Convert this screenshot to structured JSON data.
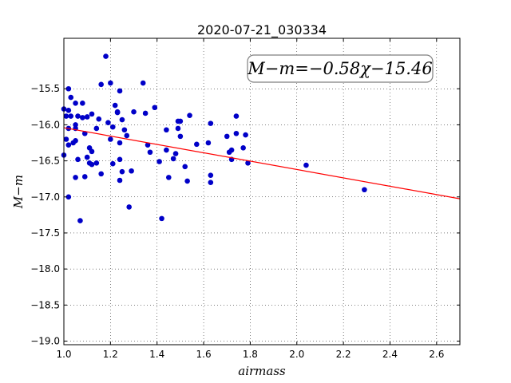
{
  "chart_data": {
    "type": "scatter",
    "title": "2020-07-21_030334",
    "xlabel": "airmass",
    "ylabel": "M−m",
    "xlim": [
      1.0,
      2.7
    ],
    "ylim": [
      -19.05,
      -14.8
    ],
    "x_ticks": [
      1.0,
      1.2,
      1.4,
      1.6,
      1.8,
      2.0,
      2.2,
      2.4,
      2.6
    ],
    "x_tick_labels": [
      "1.0",
      "1.2",
      "1.4",
      "1.6",
      "1.8",
      "2.0",
      "2.2",
      "2.4",
      "2.6"
    ],
    "y_ticks": [
      -15.5,
      -16.0,
      -16.5,
      -17.0,
      -17.5,
      -18.0,
      -18.5,
      -19.0
    ],
    "y_tick_labels": [
      "−15.5",
      "−16.0",
      "−16.5",
      "−17.0",
      "−17.5",
      "−18.0",
      "−18.5",
      "−19.0"
    ],
    "grid": true,
    "annotation": "M−m=−0.58χ−15.46",
    "fit": {
      "slope": -0.58,
      "intercept": -15.46,
      "x_range": [
        1.0,
        2.7
      ],
      "color": "#ff0000"
    },
    "marker_color": "#0000c8",
    "points": [
      [
        1.0,
        -15.78
      ],
      [
        1.0,
        -16.42
      ],
      [
        1.01,
        -15.88
      ],
      [
        1.01,
        -16.2
      ],
      [
        1.02,
        -16.05
      ],
      [
        1.02,
        -16.28
      ],
      [
        1.02,
        -15.5
      ],
      [
        1.02,
        -15.8
      ],
      [
        1.02,
        -17.0
      ],
      [
        1.03,
        -15.62
      ],
      [
        1.03,
        -15.88
      ],
      [
        1.04,
        -16.25
      ],
      [
        1.05,
        -15.7
      ],
      [
        1.05,
        -16.0
      ],
      [
        1.05,
        -16.05
      ],
      [
        1.05,
        -16.22
      ],
      [
        1.05,
        -16.73
      ],
      [
        1.06,
        -15.88
      ],
      [
        1.06,
        -16.48
      ],
      [
        1.07,
        -17.33
      ],
      [
        1.08,
        -15.7
      ],
      [
        1.08,
        -15.9
      ],
      [
        1.09,
        -16.72
      ],
      [
        1.09,
        -16.12
      ],
      [
        1.1,
        -16.45
      ],
      [
        1.1,
        -15.89
      ],
      [
        1.11,
        -16.53
      ],
      [
        1.11,
        -16.32
      ],
      [
        1.12,
        -15.85
      ],
      [
        1.12,
        -16.37
      ],
      [
        1.12,
        -16.55
      ],
      [
        1.14,
        -16.53
      ],
      [
        1.14,
        -16.05
      ],
      [
        1.15,
        -15.92
      ],
      [
        1.16,
        -16.68
      ],
      [
        1.16,
        -15.44
      ],
      [
        1.18,
        -15.05
      ],
      [
        1.19,
        -15.97
      ],
      [
        1.2,
        -16.2
      ],
      [
        1.2,
        -15.42
      ],
      [
        1.21,
        -16.03
      ],
      [
        1.21,
        -16.54
      ],
      [
        1.22,
        -15.73
      ],
      [
        1.23,
        -15.82
      ],
      [
        1.23,
        -15.83
      ],
      [
        1.24,
        -16.25
      ],
      [
        1.24,
        -16.48
      ],
      [
        1.24,
        -16.77
      ],
      [
        1.24,
        -15.53
      ],
      [
        1.25,
        -15.93
      ],
      [
        1.25,
        -16.65
      ],
      [
        1.26,
        -16.07
      ],
      [
        1.27,
        -16.15
      ],
      [
        1.28,
        -17.14
      ],
      [
        1.29,
        -16.64
      ],
      [
        1.3,
        -15.82
      ],
      [
        1.34,
        -15.42
      ],
      [
        1.35,
        -15.84
      ],
      [
        1.36,
        -16.28
      ],
      [
        1.37,
        -16.38
      ],
      [
        1.39,
        -15.76
      ],
      [
        1.41,
        -16.51
      ],
      [
        1.42,
        -17.3
      ],
      [
        1.44,
        -16.07
      ],
      [
        1.44,
        -16.35
      ],
      [
        1.45,
        -16.73
      ],
      [
        1.47,
        -16.47
      ],
      [
        1.48,
        -16.4
      ],
      [
        1.49,
        -15.95
      ],
      [
        1.49,
        -16.05
      ],
      [
        1.5,
        -15.95
      ],
      [
        1.5,
        -16.16
      ],
      [
        1.52,
        -16.58
      ],
      [
        1.53,
        -16.78
      ],
      [
        1.54,
        -15.87
      ],
      [
        1.57,
        -16.27
      ],
      [
        1.62,
        -16.25
      ],
      [
        1.63,
        -16.8
      ],
      [
        1.63,
        -16.7
      ],
      [
        1.63,
        -15.98
      ],
      [
        1.7,
        -16.16
      ],
      [
        1.71,
        -16.38
      ],
      [
        1.72,
        -16.35
      ],
      [
        1.72,
        -16.48
      ],
      [
        1.74,
        -16.12
      ],
      [
        1.74,
        -15.88
      ],
      [
        1.77,
        -16.32
      ],
      [
        1.78,
        -16.14
      ],
      [
        1.79,
        -16.53
      ],
      [
        2.04,
        -16.56
      ],
      [
        2.29,
        -16.9
      ]
    ]
  }
}
